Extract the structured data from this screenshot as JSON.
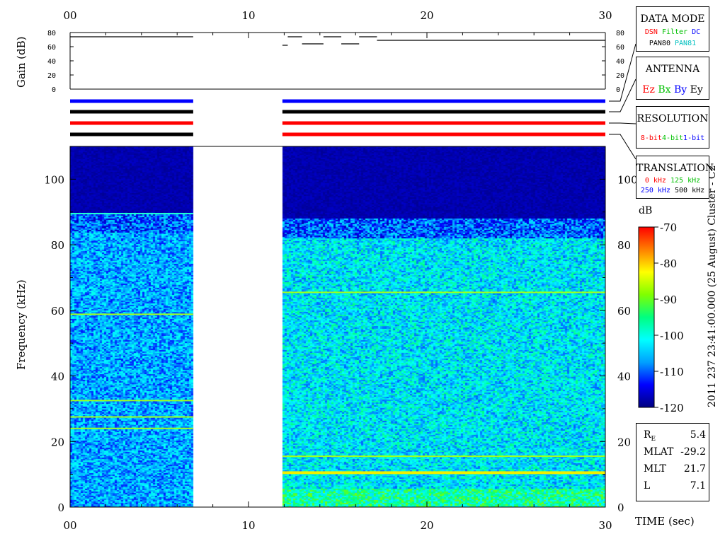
{
  "chart_data": {
    "type": "heatmap",
    "title": "",
    "xlabel": "TIME (sec)",
    "ylabel": "Frequency (kHz)",
    "xlim": [
      0,
      30
    ],
    "ylim": [
      0,
      110
    ],
    "x_ticks": [
      "00",
      "10",
      "20",
      "30"
    ],
    "y_ticks": [
      "0",
      "20",
      "40",
      "60",
      "80",
      "100"
    ],
    "data_segments": [
      {
        "t_start": 0.0,
        "t_end": 6.9,
        "noise_ceiling_khz": 88
      },
      {
        "t_start": 11.9,
        "t_end": 30.0,
        "noise_ceiling_khz": 86
      }
    ],
    "emission_lines": [
      {
        "segment": 0,
        "freq_khz": 89.5
      },
      {
        "segment": 0,
        "freq_khz": 58.8
      },
      {
        "segment": 0,
        "freq_khz": 32.5
      },
      {
        "segment": 0,
        "freq_khz": 27.5
      },
      {
        "segment": 0,
        "freq_khz": 24.0
      },
      {
        "segment": 1,
        "freq_khz": 65.5
      },
      {
        "segment": 1,
        "freq_khz": 15.5
      },
      {
        "segment": 1,
        "freq_khz": 10.5
      }
    ],
    "colorbar": {
      "label": "dB",
      "range": [
        -120,
        -70
      ],
      "ticks": [
        "-70",
        "-80",
        "-90",
        "-100",
        "-110",
        "-120"
      ],
      "colors": [
        "#000080",
        "#0000ff",
        "#00a0ff",
        "#00ffff",
        "#00ff80",
        "#80ff00",
        "#ffff00",
        "#ff8000",
        "#ff0000"
      ]
    },
    "gain": {
      "ylabel": "Gain (dB)",
      "ylim": [
        0,
        80
      ],
      "ticks": [
        "0",
        "20",
        "40",
        "60",
        "80"
      ],
      "segments": [
        {
          "t0": 0.0,
          "t1": 6.9,
          "db": 74
        },
        {
          "t0": 11.9,
          "t1": 12.2,
          "db": 62
        },
        {
          "t0": 12.2,
          "t1": 13.0,
          "db": 74
        },
        {
          "t0": 13.0,
          "t1": 14.2,
          "db": 64
        },
        {
          "t0": 14.2,
          "t1": 15.2,
          "db": 74
        },
        {
          "t0": 15.2,
          "t1": 16.2,
          "db": 64
        },
        {
          "t0": 16.2,
          "t1": 17.2,
          "db": 74
        },
        {
          "t0": 17.2,
          "t1": 30.0,
          "db": 69
        }
      ]
    },
    "status_bars": [
      {
        "color": "#0000ff"
      },
      {
        "color": "#000000"
      },
      {
        "color": "#ff0000"
      },
      {
        "color": "#000000",
        "color_segment2": "#ff0000"
      }
    ]
  },
  "side_label": "2011 237 23:41:00.000 (25 August)   Cluster - C2",
  "data_mode": {
    "title": "DATA MODE",
    "row1": [
      {
        "text": "DSN",
        "color": "#ff0000"
      },
      {
        "text": "Filter",
        "color": "#00c000"
      },
      {
        "text": "DC",
        "color": "#0000ff"
      }
    ],
    "row2": [
      {
        "text": "PAN80",
        "color": "#000000"
      },
      {
        "text": "PAN81",
        "color": "#00c0c0"
      }
    ]
  },
  "antenna": {
    "title": "ANTENNA",
    "items": [
      {
        "text": "Ez",
        "color": "#ff0000"
      },
      {
        "text": "Bx",
        "color": "#00c000"
      },
      {
        "text": "By",
        "color": "#0000ff"
      },
      {
        "text": "Ey",
        "color": "#000000"
      }
    ]
  },
  "resolution": {
    "title": "RESOLUTION",
    "items": [
      {
        "text": "8-bit",
        "color": "#ff0000"
      },
      {
        "text": "4-bit",
        "color": "#00c000"
      },
      {
        "text": "1-bit",
        "color": "#0000ff"
      }
    ]
  },
  "translation": {
    "title": "TRANSLATION",
    "row1": [
      {
        "text": "0 kHz",
        "color": "#ff0000"
      },
      {
        "text": "125 kHz",
        "color": "#00c000"
      }
    ],
    "row2": [
      {
        "text": "250 kHz",
        "color": "#0000ff"
      },
      {
        "text": "500 kHz",
        "color": "#000000"
      }
    ]
  },
  "ephemeris": [
    {
      "label": "R",
      "sub": "E",
      "value": "5.4"
    },
    {
      "label": "MLAT",
      "sub": "",
      "value": "-29.2"
    },
    {
      "label": "MLT",
      "sub": "",
      "value": "21.7"
    },
    {
      "label": "L",
      "sub": "",
      "value": "7.1"
    }
  ]
}
